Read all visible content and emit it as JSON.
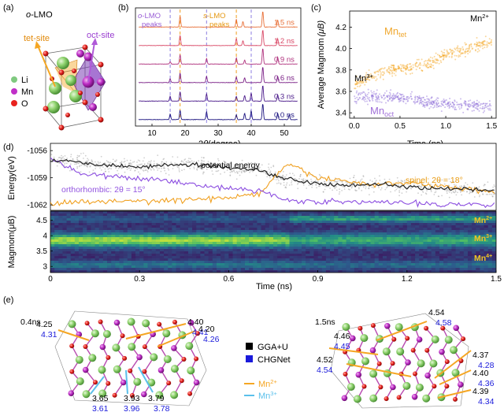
{
  "panel_a": {
    "label": "(a)",
    "title_prefix": "o",
    "title_suffix": "-LMO",
    "tet_label": "tet-site",
    "oct_label": "oct-site",
    "legend": [
      {
        "name": "Li",
        "color": "#7fc97f"
      },
      {
        "name": "Mn",
        "color": "#c02fc8"
      },
      {
        "name": "O",
        "color": "#e8221f"
      }
    ]
  },
  "panel_b": {
    "label": "(b)",
    "xlabel_prefix": "2",
    "xlabel_theta": "θ",
    "xlabel_suffix": "(degree)",
    "o_peaks_prefix": "o",
    "o_peaks_suffix": "-LMO",
    "o_peaks_line2": "peaks",
    "s_peaks_prefix": "s",
    "s_peaks_suffix": "-LMO",
    "s_peaks_line2": "peaks",
    "times": [
      "1.5 ns",
      "1.2 ns",
      "0.9 ns",
      "0.6 ns",
      "0.3 ns",
      "0.0 ns"
    ],
    "colors": [
      "#e8713a",
      "#d94866",
      "#b0337e",
      "#7a1f86",
      "#4a1a8a",
      "#1c1480"
    ]
  },
  "panel_c": {
    "label": "(c)",
    "ylabel": "Average Magmom",
    "ylabel_unit": "(μB)",
    "xlabel": "Time (ns)",
    "mn_tet_label": "Mn",
    "mn_tet_sub": "tet",
    "mn_oct_label": "Mn",
    "mn_oct_sub": "oct",
    "mn2_label": "Mn",
    "mn2_sup": "2+",
    "mn3_label": "Mn",
    "mn3_sup": "3+"
  },
  "panel_d": {
    "label": "(d)",
    "ylabel_energy": "Energy(eV)",
    "ylabel_magmom": "Magmom(μB)",
    "xlabel": "Time (ns)",
    "potential_energy_label": "potential energy",
    "spinel_label": "spinel: 2θ = 18°",
    "orthorhombic_label": "orthorhombic: 2θ = 15°",
    "mn2_label": "Mn",
    "mn2_sup": "2+",
    "mn3_label": "Mn",
    "mn3_sup": "3+",
    "mn4_label": "Mn",
    "mn4_sup": "4+"
  },
  "panel_e": {
    "label": "(e)",
    "time_left": "0.4ns",
    "time_right": "1.5ns",
    "legend_gga": "GGA+U",
    "legend_chgnet": "CHGNet",
    "legend_mn2": "Mn",
    "legend_mn2_sup": "2+",
    "legend_mn3": "Mn",
    "legend_mn3_sup": "3+",
    "colors": {
      "gga": "#000000",
      "chgnet": "#1a1adb",
      "mn2": "#f5a623",
      "mn3": "#5bc0eb"
    },
    "left_pairs": [
      {
        "gga": "4.40",
        "chgnet": "4.41"
      },
      {
        "gga": "4.25",
        "chgnet": "4.31"
      },
      {
        "gga": "4.20",
        "chgnet": "4.26"
      },
      {
        "gga": "3.65",
        "chgnet": "3.61"
      },
      {
        "gga": "3.93",
        "chgnet": "3.96"
      },
      {
        "gga": "3.79",
        "chgnet": "3.78"
      }
    ],
    "right_pairs": [
      {
        "gga": "4.54",
        "chgnet": "4.58"
      },
      {
        "gga": "4.46",
        "chgnet": "4.45"
      },
      {
        "gga": "4.52",
        "chgnet": "4.54"
      },
      {
        "gga": "4.37",
        "chgnet": "4.28"
      },
      {
        "gga": "4.40",
        "chgnet": "4.36"
      },
      {
        "gga": "4.39",
        "chgnet": "4.34"
      }
    ]
  },
  "chart_data": [
    {
      "type": "line",
      "panel": "b",
      "xlabel": "2θ(degree)",
      "xlim": [
        5,
        55
      ],
      "x_ticks": [
        10,
        20,
        30,
        40,
        50
      ],
      "series": [
        {
          "name": "0.0 ns",
          "peaks": [
            [
              15.5,
              0.35
            ],
            [
              18.5,
              0.6
            ],
            [
              26.5,
              0.5
            ],
            [
              35.5,
              0.3
            ],
            [
              38,
              0.4
            ],
            [
              40,
              0.55
            ],
            [
              43.5,
              1.0
            ],
            [
              48,
              0.4
            ],
            [
              51.5,
              0.3
            ]
          ]
        },
        {
          "name": "0.3 ns",
          "peaks": [
            [
              15.5,
              0.3
            ],
            [
              18.5,
              0.6
            ],
            [
              26.5,
              0.45
            ],
            [
              35.5,
              0.3
            ],
            [
              38,
              0.35
            ],
            [
              40,
              0.5
            ],
            [
              43.5,
              1.0
            ],
            [
              48,
              0.4
            ]
          ]
        },
        {
          "name": "0.6 ns",
          "peaks": [
            [
              15.5,
              0.25
            ],
            [
              18.5,
              0.6
            ],
            [
              26.5,
              0.4
            ],
            [
              35.5,
              0.35
            ],
            [
              38,
              0.3
            ],
            [
              43.5,
              1.0
            ],
            [
              48,
              0.4
            ]
          ]
        },
        {
          "name": "0.9 ns",
          "peaks": [
            [
              15.5,
              0.15
            ],
            [
              18.5,
              0.6
            ],
            [
              26.5,
              0.35
            ],
            [
              35.5,
              0.4
            ],
            [
              38,
              0.25
            ],
            [
              43.5,
              1.0
            ],
            [
              48,
              0.45
            ]
          ]
        },
        {
          "name": "1.2 ns",
          "peaks": [
            [
              18.5,
              0.65
            ],
            [
              35.5,
              0.45
            ],
            [
              37.5,
              0.3
            ],
            [
              43.5,
              1.0
            ],
            [
              48,
              0.45
            ]
          ]
        },
        {
          "name": "1.5 ns",
          "peaks": [
            [
              18.5,
              0.7
            ],
            [
              35.5,
              0.5
            ],
            [
              37.5,
              0.35
            ],
            [
              43.5,
              1.0
            ],
            [
              48,
              0.45
            ]
          ]
        }
      ],
      "o_peaks_x": [
        15.5,
        26.5
      ],
      "s_peaks_x": [
        18.5,
        35.5
      ],
      "extra_dashed_x": [
        40
      ]
    },
    {
      "type": "scatter",
      "panel": "c",
      "xlabel": "Time (ns)",
      "ylabel": "Average Magmom (μB)",
      "xlim": [
        -0.05,
        1.55
      ],
      "ylim": [
        3.35,
        4.35
      ],
      "x_ticks": [
        0.0,
        0.5,
        1.0,
        1.5
      ],
      "y_ticks": [
        3.4,
        3.6,
        3.8,
        4.0,
        4.2
      ],
      "series": [
        {
          "name": "Mn_tet",
          "color": "#f5a623",
          "x": [
            0.0,
            0.2,
            0.4,
            0.6,
            0.8,
            1.0,
            1.2,
            1.4,
            1.5
          ],
          "y": [
            3.66,
            3.75,
            3.8,
            3.82,
            3.85,
            3.95,
            3.98,
            4.05,
            4.07
          ]
        },
        {
          "name": "Mn_oct",
          "color": "#8c6bd6",
          "x": [
            0.0,
            0.2,
            0.4,
            0.6,
            0.8,
            1.0,
            1.2,
            1.4,
            1.5
          ],
          "y": [
            3.54,
            3.55,
            3.54,
            3.54,
            3.5,
            3.48,
            3.47,
            3.46,
            3.46
          ]
        }
      ]
    },
    {
      "type": "line",
      "panel": "d-top",
      "xlabel": "Time (ns)",
      "ylabel": "Energy(eV)",
      "xlim": [
        0,
        1.5
      ],
      "ylim": [
        -1062.6,
        -1055.2
      ],
      "y_ticks": [
        -1056,
        -1059,
        -1062
      ],
      "series": [
        {
          "name": "potential energy",
          "color": "#222222",
          "x": [
            0.0,
            0.1,
            0.2,
            0.3,
            0.4,
            0.5,
            0.6,
            0.7,
            0.8,
            0.9,
            1.0,
            1.1,
            1.2,
            1.3,
            1.4,
            1.5
          ],
          "y": [
            -1057.0,
            -1057.3,
            -1057.6,
            -1057.8,
            -1057.6,
            -1057.5,
            -1057.9,
            -1058.1,
            -1059.2,
            -1059.6,
            -1059.8,
            -1059.7,
            -1060.0,
            -1060.2,
            -1060.3,
            -1060.5
          ]
        },
        {
          "name": "spinel: 2θ = 18°",
          "color": "#f0a020",
          "x": [
            0.0,
            0.1,
            0.2,
            0.3,
            0.4,
            0.5,
            0.6,
            0.7,
            0.8,
            0.9,
            1.0,
            1.1,
            1.2,
            1.3,
            1.4,
            1.5
          ],
          "y": [
            -1061.8,
            -1061.7,
            -1061.6,
            -1061.6,
            -1061.5,
            -1061.4,
            -1061.2,
            -1060.8,
            -1057.5,
            -1059.0,
            -1059.4,
            -1059.8,
            -1059.5,
            -1059.9,
            -1060.2,
            -1060.6
          ]
        },
        {
          "name": "orthorhombic: 2θ = 15°",
          "color": "#8c4ee0",
          "x": [
            0.0,
            0.1,
            0.2,
            0.3,
            0.4,
            0.5,
            0.6,
            0.7,
            0.8,
            0.9,
            1.0,
            1.1,
            1.2,
            1.3,
            1.4,
            1.5
          ],
          "y": [
            -1056.8,
            -1058.5,
            -1058.9,
            -1059.1,
            -1059.3,
            -1059.8,
            -1060.2,
            -1060.4,
            -1061.5,
            -1061.6,
            -1061.7,
            -1061.7,
            -1061.8,
            -1061.9,
            -1061.9,
            -1062.0
          ]
        }
      ]
    },
    {
      "type": "heatmap",
      "panel": "d-bottom",
      "xlabel": "Time (ns)",
      "ylabel": "Magmom(μB)",
      "xlim": [
        0,
        1.5
      ],
      "ylim": [
        2.8,
        4.8
      ],
      "x_ticks": [
        0,
        0.3,
        0.6,
        0.9,
        1.2,
        1.5
      ],
      "y_ticks": [
        3,
        3.5,
        4,
        4.5
      ],
      "bands": [
        {
          "label": "Mn2+",
          "magmom": 4.55
        },
        {
          "label": "Mn3+",
          "magmom": 3.9
        },
        {
          "label": "Mn4+",
          "magmom": 3.0
        }
      ]
    }
  ]
}
